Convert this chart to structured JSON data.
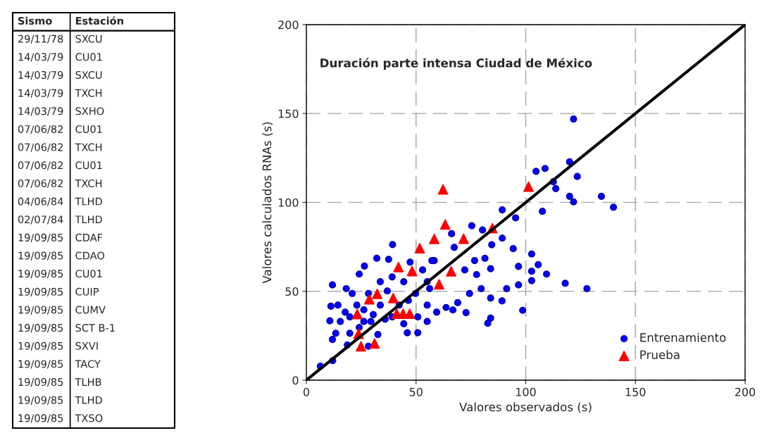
{
  "chart_data": [
    {
      "type": "other",
      "annotations": [
        "Sismo",
        "Estación",
        "29/11/78",
        "SXCU",
        "14/03/79",
        "CU01",
        "14/03/79",
        "SXCU",
        "14/03/79",
        "TXCH",
        "14/03/79",
        "SXHO",
        "07/06/82",
        "CU01",
        "07/06/82",
        "TXCH",
        "07/06/82",
        "CU01",
        "07/06/82",
        "TXCH",
        "04/06/84",
        "TLHD",
        "02/07/84",
        "TLHD",
        "19/09/85",
        "CDAF",
        "19/09/85",
        "CDAO",
        "19/09/85",
        "CU01",
        "19/09/85",
        "CUIP",
        "19/09/85",
        "CUMV",
        "19/09/85",
        "SCT B-1",
        "19/09/85",
        "SXVI",
        "19/09/85",
        "TACY",
        "19/09/85",
        "TLHB",
        "19/09/85",
        "TLHD",
        "19/09/85",
        "TXSO"
      ]
    },
    {
      "type": "scatter",
      "title": "Duración parte intensa Ciudad de México",
      "xlabel": "Valores observados (s)",
      "ylabel": "Valores calculados RNAs (s)",
      "xlim": [
        0,
        200
      ],
      "ylim": [
        0,
        200
      ],
      "xticks": [
        0,
        50,
        100,
        150,
        200
      ],
      "yticks": [
        0,
        50,
        100,
        150,
        200
      ],
      "grid": true,
      "legend": "bottom right",
      "series": [
        {
          "name": "Entrenamiento",
          "type": "scatter",
          "marker": "circle",
          "color": "#0000ff",
          "x": [
            121.8,
            120,
            104.7,
            108.8,
            123.5,
            112.6,
            113.7,
            120,
            121.8,
            134.5,
            107.6,
            89.3,
            95.4,
            140,
            127.9,
            118,
            102.7,
            105.7,
            102.7,
            109.5,
            102.7,
            98.6,
            96.7,
            94.3,
            96.7,
            89.2,
            91.3,
            84.5,
            89.3,
            75.4,
            80.3,
            66.2,
            67.4,
            82.7,
            84,
            72.8,
            66.8,
            76.7,
            81.4,
            84,
            79.7,
            74.4,
            69,
            63.7,
            84,
            77.6,
            72.2,
            58.3,
            56.2,
            59.4,
            55.1,
            39.3,
            32.1,
            26.5,
            11.9,
            18.2,
            24.1,
            11.2,
            10.7,
            11.9,
            6.4,
            12,
            18.7,
            13.4,
            15.5,
            19.8,
            26.2,
            32.6,
            28.3,
            46,
            50.8,
            37.5,
            47.3,
            39.1,
            44.4,
            33.7,
            28.3,
            33.7,
            39.1,
            23,
            19.8,
            42.3,
            49.8,
            55.1,
            55.1,
            53,
            57.2,
            50.8,
            44.4,
            35.9,
            30.5,
            26.2,
            17.7,
            14.4,
            20.9,
            36.9,
            46.5,
            24.1,
            29.4
          ],
          "values": [
            146.9,
            122.8,
            117.5,
            119.1,
            114.6,
            111.6,
            107.8,
            103.4,
            100.3,
            103.4,
            95,
            95.8,
            91.3,
            97.3,
            51.5,
            54.5,
            71,
            65,
            61.3,
            59.7,
            56,
            39.3,
            64,
            74,
            53.6,
            44.6,
            51.5,
            76.2,
            79.9,
            86.9,
            84.5,
            82.4,
            74.7,
            32,
            34.9,
            38,
            39.5,
            67.3,
            68.6,
            62.7,
            51.5,
            48.8,
            43.6,
            40.9,
            46.2,
            59.4,
            62,
            67.3,
            51.5,
            38.3,
            33,
            76.3,
            68.6,
            64.2,
            53.6,
            51.5,
            59.7,
            41.6,
            33.4,
            22.9,
            7.9,
            11,
            19.8,
            26.4,
            33,
            26.4,
            33,
            25.7,
            19.1,
            26.7,
            26.7,
            68,
            66.4,
            58.1,
            55.4,
            55.4,
            48.8,
            42.2,
            35.6,
            42.2,
            35.6,
            42.2,
            48.8,
            42.2,
            55.4,
            62,
            67.3,
            35.6,
            31.7,
            34.3,
            36.9,
            39.6,
            38.3,
            42.2,
            48.8,
            50.2,
            44.9,
            29.7,
            33
          ]
        },
        {
          "name": "Prueba",
          "type": "scatter",
          "marker": "triangle",
          "color": "#ff0000",
          "x": [
            23.2,
            28.7,
            32.3,
            39.6,
            42,
            48.2,
            51.7,
            58.3,
            41.2,
            44.1,
            47.1,
            23.8,
            24.9,
            31.1,
            62.3,
            101.3,
            63.3,
            71.7,
            84.8,
            66,
            60.5
          ],
          "values": [
            37.2,
            45.5,
            48.6,
            46.2,
            63.6,
            61.4,
            74.2,
            79.5,
            37.4,
            37.4,
            37.4,
            26.1,
            19.1,
            20.7,
            107.3,
            108.9,
            87.6,
            79.6,
            85.5,
            61.3,
            53.9
          ]
        },
        {
          "type": "line",
          "marker": "none",
          "color": "#000000",
          "x": [
            0,
            200
          ],
          "values": [
            0,
            200
          ]
        }
      ]
    }
  ]
}
